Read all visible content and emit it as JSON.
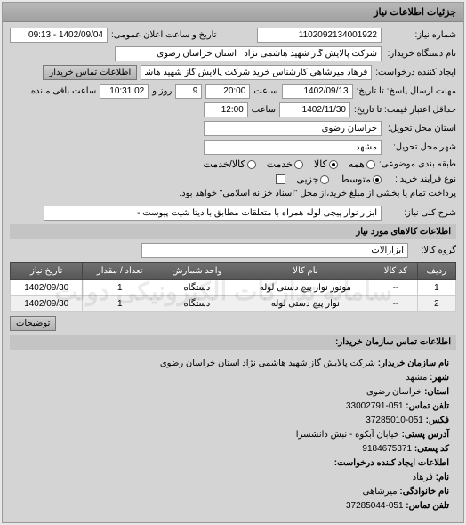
{
  "panel_title": "جزئیات اطلاعات نیاز",
  "fields": {
    "need_no_label": "شماره نیاز:",
    "need_no": "1102092134001922",
    "announce_label": "تاریخ و ساعت اعلان عمومی:",
    "announce_value": "1402/09/04 - 09:13",
    "buyer_org_label": "نام دستگاه خریدار:",
    "buyer_org": "شرکت پالایش گاز شهید هاشمی نژاد   استان خراسان رضوی",
    "requester_label": "ایجاد کننده درخواست:",
    "requester": "فرهاد میرشاهی کارشناس خرید شرکت پالایش گاز شهید هاشمی نژاد   استا",
    "contact_btn": "اطلاعات تماس خریدار",
    "deadline_label": "مهلت ارسال پاسخ: تا تاریخ:",
    "deadline_date": "1402/09/13",
    "time_label": "ساعت",
    "deadline_time": "20:00",
    "days_remain": "9",
    "days_remain_label": "روز و",
    "time_remain": "10:31:02",
    "time_remain_label": "ساعت باقی مانده",
    "validity_label": "حداقل اعتبار قیمت: تا تاریخ:",
    "validity_date": "1402/11/30",
    "validity_time": "12:00",
    "delivery_prov_label": "استان محل تحویل:",
    "delivery_prov": "خراسان رضوی",
    "delivery_city_label": "شهر محل تحویل:",
    "delivery_city": "مشهد",
    "group_label": "طبقه بندی موضوعی:",
    "group_all": "همه",
    "group_goods": "کالا",
    "group_service": "خدمت",
    "group_goodservice": "کالا/خدمت",
    "buy_type_label": "نوع فرآیند خرید :",
    "buy_type_mid": "متوسط",
    "buy_type_small": "جزیی",
    "buy_type_note": "پرداخت تمام یا بخشی از مبلغ خرید،از محل \"اسناد خزانه اسلامی\" خواهد بود.",
    "desc_label": "شرح کلی نیاز:",
    "desc_value": "ابزار نوار پیچی لوله همراه با متعلقات مطابق با دیتا شیت پیوست -"
  },
  "goods_section": "اطلاعات کالاهای مورد نیاز",
  "goods_group_label": "گروه کالا:",
  "goods_group_value": "ابزارآلات",
  "table": {
    "headers": [
      "ردیف",
      "کد کالا",
      "نام کالا",
      "واحد شمارش",
      "تعداد / مقدار",
      "تاریخ نیاز"
    ],
    "rows": [
      [
        "1",
        "--",
        "موتور نوار پیچ دستی لوله",
        "دستگاه",
        "1",
        "1402/09/30"
      ],
      [
        "2",
        "--",
        "نوار پیچ دستی لوله",
        "دستگاه",
        "1",
        "1402/09/30"
      ]
    ]
  },
  "comments_btn": "توضیحات",
  "watermark": "سامانه تدارکات الکترونیکی دولت",
  "contact_title": "اطلاعات تماس سازمان خریدار:",
  "contact": {
    "org_name_l": "نام سازمان خریدار:",
    "org_name": "شرکت پالایش گاز شهید هاشمی نژاد استان خراسان رضوی",
    "city_l": "شهر:",
    "city": "مشهد",
    "prov_l": "استان:",
    "prov": "خراسان رضوی",
    "tel_l": "تلفن تماس:",
    "tel": "051-33002791",
    "fax_l": "فکس:",
    "fax": "051-37285010",
    "addr_l": "آدرس پستی:",
    "addr": "خیابان آبکوه - نبش دانشسرا",
    "zip_l": "کد پستی:",
    "zip": "9184675371",
    "creator_title": "اطلاعات ایجاد کننده درخواست:",
    "name_l": "نام:",
    "name": "فرهاد",
    "family_l": "نام خانوادگی:",
    "family": "میرشاهی",
    "tel2_l": "تلفن تماس:",
    "tel2": "051-37285044"
  }
}
